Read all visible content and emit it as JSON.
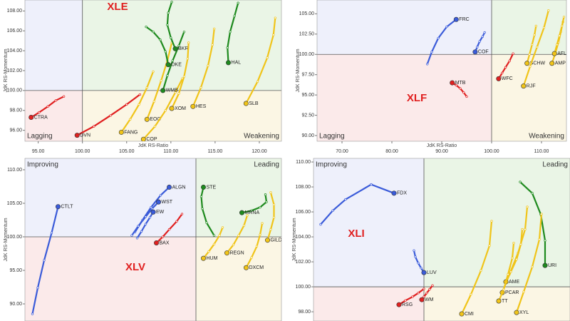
{
  "chart_data": [
    {
      "type": "rrg",
      "title": "XLE",
      "center": 100,
      "x_label": "JdK RS-Ratio",
      "y_label": "JdK RS-Momentum",
      "xlim": [
        93.5,
        122.5
      ],
      "ylim": [
        94.9,
        109.1
      ],
      "xticks": [
        {
          "value": 95,
          "label": "95.00"
        },
        {
          "value": 100,
          "label": "100.00"
        },
        {
          "value": 105,
          "label": "105.00"
        },
        {
          "value": 110,
          "label": "110.00"
        },
        {
          "value": 115,
          "label": "115.00"
        },
        {
          "value": 120,
          "label": "120.00"
        }
      ],
      "yticks": [
        {
          "value": 96,
          "label": "96.00"
        },
        {
          "value": 98,
          "label": "98.00"
        },
        {
          "value": 100,
          "label": "100.00"
        },
        {
          "value": 102,
          "label": "102.00"
        },
        {
          "value": 104,
          "label": "104.00"
        },
        {
          "value": 106,
          "label": "106.00"
        },
        {
          "value": 108,
          "label": "108.00"
        }
      ],
      "quadrant_labels": [
        {
          "text": "Lagging",
          "corner": "bottom-left",
          "color": "#e86a6a"
        },
        {
          "text": "Weakening",
          "corner": "bottom-right",
          "color": "#e0a800"
        }
      ],
      "series": [
        {
          "name": "CTRA",
          "color": "#e02020",
          "x": [
            97.9,
            97.0,
            96.1,
            95.1,
            94.2
          ],
          "y": [
            99.4,
            99.0,
            98.4,
            97.8,
            97.3
          ]
        },
        {
          "name": "DVN",
          "color": "#e02020",
          "x": [
            106.5,
            105.0,
            103.2,
            101.3,
            99.4
          ],
          "y": [
            99.6,
            98.6,
            97.5,
            96.4,
            95.5
          ]
        },
        {
          "name": "EOG",
          "color": "#f0c419",
          "x": [
            110.1,
            109.6,
            108.9,
            108.1,
            107.3
          ],
          "y": [
            104.8,
            103.0,
            101.0,
            98.9,
            97.1
          ]
        },
        {
          "name": "FANG",
          "color": "#f0c419",
          "x": [
            108.0,
            107.3,
            106.4,
            105.4,
            104.4
          ],
          "y": [
            101.9,
            100.3,
            98.6,
            97.1,
            95.8
          ]
        },
        {
          "name": "COP",
          "color": "#f0c419",
          "x": [
            111.3,
            110.5,
            109.4,
            108.2,
            106.9
          ],
          "y": [
            101.2,
            99.8,
            98.0,
            96.4,
            95.1
          ]
        },
        {
          "name": "WMB",
          "color": "#1e8a1e",
          "x": [
            111.5,
            110.9,
            110.2,
            109.6,
            109.1
          ],
          "y": [
            105.9,
            104.5,
            103.0,
            101.5,
            100.0
          ]
        },
        {
          "name": "OKE",
          "color": "#1e8a1e",
          "x": [
            107.2,
            108.0,
            108.8,
            109.4,
            109.7
          ],
          "y": [
            106.4,
            105.9,
            105.1,
            103.9,
            102.6
          ]
        },
        {
          "name": "BKR",
          "color": "#1e8a1e",
          "x": [
            110.1,
            109.7,
            109.6,
            110.0,
            110.5
          ],
          "y": [
            108.9,
            107.8,
            106.6,
            105.3,
            104.2
          ]
        },
        {
          "name": "HAL",
          "color": "#1e8a1e",
          "x": [
            117.6,
            117.2,
            116.7,
            116.4,
            116.5
          ],
          "y": [
            108.8,
            107.5,
            105.9,
            104.3,
            102.8
          ]
        },
        {
          "name": "XOM",
          "color": "#f0c419",
          "x": [
            112.0,
            111.9,
            111.5,
            110.9,
            110.1
          ],
          "y": [
            104.8,
            103.2,
            101.4,
            99.7,
            98.2
          ]
        },
        {
          "name": "HES",
          "color": "#f0c419",
          "x": [
            114.9,
            114.7,
            114.2,
            113.4,
            112.5
          ],
          "y": [
            106.2,
            104.6,
            102.5,
            100.3,
            98.4
          ]
        },
        {
          "name": "SLB",
          "color": "#f0c419",
          "x": [
            121.8,
            121.6,
            120.9,
            119.8,
            118.5
          ],
          "y": [
            107.3,
            105.6,
            103.3,
            100.9,
            98.7
          ]
        }
      ]
    },
    {
      "type": "rrg",
      "title": "XLF",
      "center": 100,
      "x_label": "JdK RS-Ratio",
      "y_label": "JdK RS-Momentum",
      "xlim": [
        65,
        115
      ],
      "ylim": [
        89.3,
        106.7
      ],
      "xticks": [
        {
          "value": 70,
          "label": "70.00"
        },
        {
          "value": 80,
          "label": "80.00"
        },
        {
          "value": 90,
          "label": "90.00"
        },
        {
          "value": 100,
          "label": "100.00"
        },
        {
          "value": 110,
          "label": "110.00"
        }
      ],
      "yticks": [
        {
          "value": 90,
          "label": "90.00"
        },
        {
          "value": 92.5,
          "label": "92.50"
        },
        {
          "value": 95,
          "label": "95.00"
        },
        {
          "value": 97.5,
          "label": "97.50"
        },
        {
          "value": 100,
          "label": "100.00"
        },
        {
          "value": 102.5,
          "label": "102.50"
        },
        {
          "value": 105,
          "label": "105.00"
        }
      ],
      "quadrant_labels": [
        {
          "text": "Lagging",
          "corner": "bottom-left",
          "color": "#e86a6a"
        },
        {
          "text": "Weakening",
          "corner": "bottom-right",
          "color": "#e0a800"
        }
      ],
      "series": [
        {
          "name": "FRC",
          "color": "#3a5bd9",
          "x": [
            87.1,
            88.0,
            89.3,
            91.0,
            92.9
          ],
          "y": [
            98.8,
            100.3,
            102.0,
            103.4,
            104.3
          ]
        },
        {
          "name": "COF",
          "color": "#3a5bd9",
          "x": [
            98.6,
            98.2,
            97.6,
            97.1,
            96.7
          ],
          "y": [
            102.7,
            102.2,
            101.6,
            100.9,
            100.3
          ]
        },
        {
          "name": "MTB",
          "color": "#e02020",
          "x": [
            95.0,
            94.4,
            93.7,
            92.9,
            92.1
          ],
          "y": [
            94.8,
            95.3,
            95.8,
            96.2,
            96.5
          ]
        },
        {
          "name": "WFC",
          "color": "#e02020",
          "x": [
            104.3,
            103.6,
            102.8,
            102.1,
            101.4
          ],
          "y": [
            100.1,
            99.2,
            98.4,
            97.7,
            97.0
          ]
        },
        {
          "name": "SCHW",
          "color": "#f0c419",
          "x": [
            108.9,
            108.6,
            108.1,
            107.6,
            107.1
          ],
          "y": [
            103.5,
            102.4,
            101.2,
            100.0,
            98.9
          ]
        },
        {
          "name": "RJF",
          "color": "#f0c419",
          "x": [
            111.4,
            110.5,
            109.1,
            107.7,
            106.4
          ],
          "y": [
            105.4,
            103.3,
            100.9,
            98.5,
            96.1
          ]
        },
        {
          "name": "AMP",
          "color": "#f0c419",
          "x": [
            114.3,
            113.9,
            113.4,
            112.8,
            112.1
          ],
          "y": [
            104.0,
            102.8,
            101.5,
            100.2,
            98.9
          ]
        },
        {
          "name": "AFL",
          "color": "#f0c419",
          "x": [
            114.5,
            114.1,
            113.6,
            113.1,
            112.6
          ],
          "y": [
            104.6,
            103.5,
            102.3,
            101.2,
            100.1
          ]
        }
      ]
    },
    {
      "type": "rrg",
      "title": "XLV",
      "center": 100,
      "y_label": "JdK RS-Momentum",
      "xlim": [
        84,
        108
      ],
      "ylim": [
        87.45,
        111.7
      ],
      "yticks": [
        {
          "value": 90,
          "label": "90.00"
        },
        {
          "value": 95,
          "label": "95.00"
        },
        {
          "value": 100,
          "label": "100.00"
        },
        {
          "value": 105,
          "label": "105.00"
        },
        {
          "value": 110,
          "label": "110.00"
        }
      ],
      "quadrant_labels": [
        {
          "text": "Improving",
          "corner": "top-left",
          "color": "#4a63d0"
        },
        {
          "text": "Leading",
          "corner": "top-right",
          "color": "#2f9a2f"
        }
      ],
      "series": [
        {
          "name": "CTLT",
          "color": "#3a5bd9",
          "x": [
            84.7,
            85.2,
            85.8,
            86.5,
            87.1
          ],
          "y": [
            88.5,
            92.4,
            96.5,
            100.6,
            104.5
          ]
        },
        {
          "name": "ALGN",
          "color": "#3a5bd9",
          "x": [
            94.3,
            95.0,
            95.8,
            96.7,
            97.5
          ],
          "y": [
            100.7,
            102.5,
            104.4,
            106.2,
            107.4
          ]
        },
        {
          "name": "WST",
          "color": "#3a5bd9",
          "x": [
            94.0,
            94.6,
            95.3,
            95.9,
            96.5
          ],
          "y": [
            100.2,
            101.6,
            103.0,
            104.2,
            105.2
          ]
        },
        {
          "name": "EW",
          "color": "#3a5bd9",
          "x": [
            94.5,
            94.9,
            95.3,
            95.7,
            96.0
          ],
          "y": [
            99.8,
            100.8,
            101.9,
            102.9,
            103.7
          ]
        },
        {
          "name": "BAX",
          "color": "#e02020",
          "x": [
            98.7,
            98.2,
            97.5,
            96.9,
            96.3
          ],
          "y": [
            103.4,
            102.3,
            101.1,
            100.0,
            99.1
          ]
        },
        {
          "name": "STE",
          "color": "#1e8a1e",
          "x": [
            101.7,
            101.0,
            100.6,
            100.5,
            100.7
          ],
          "y": [
            100.2,
            102.1,
            104.2,
            106.0,
            107.4
          ]
        },
        {
          "name": "MRNA",
          "color": "#1e8a1e",
          "x": [
            106.5,
            106.6,
            106.0,
            105.2,
            104.3
          ],
          "y": [
            106.3,
            105.2,
            104.4,
            103.9,
            103.6
          ]
        },
        {
          "name": "HUM",
          "color": "#f0c419",
          "x": [
            102.5,
            102.2,
            101.7,
            101.2,
            100.7
          ],
          "y": [
            101.4,
            100.2,
            98.9,
            97.8,
            96.8
          ]
        },
        {
          "name": "REGN",
          "color": "#f0c419",
          "x": [
            104.8,
            104.5,
            104.0,
            103.5,
            102.9
          ],
          "y": [
            103.2,
            101.7,
            100.2,
            98.8,
            97.6
          ]
        },
        {
          "name": "DXCM",
          "color": "#f0c419",
          "x": [
            106.2,
            106.0,
            105.7,
            105.2,
            104.7
          ],
          "y": [
            102.0,
            100.3,
            98.6,
            96.9,
            95.4
          ]
        },
        {
          "name": "GILD",
          "color": "#f0c419",
          "x": [
            107.0,
            107.3,
            107.3,
            107.0,
            106.7
          ],
          "y": [
            106.6,
            104.8,
            102.9,
            101.1,
            99.5
          ]
        }
      ]
    },
    {
      "type": "rrg",
      "title": "XLI",
      "center": 100,
      "y_label": "JdK RS-Momentum",
      "xlim": [
        92.25,
        110.25
      ],
      "ylim": [
        97.26,
        110.29
      ],
      "yticks": [
        {
          "value": 98,
          "label": "98.00"
        },
        {
          "value": 100,
          "label": "100.00"
        },
        {
          "value": 102,
          "label": "102.00"
        },
        {
          "value": 104,
          "label": "104.00"
        },
        {
          "value": 106,
          "label": "106.00"
        },
        {
          "value": 108,
          "label": "108.00"
        },
        {
          "value": 110,
          "label": "110.00"
        }
      ],
      "quadrant_labels": [
        {
          "text": "Improving",
          "corner": "top-left",
          "color": "#4a63d0"
        },
        {
          "text": "Leading",
          "corner": "top-right",
          "color": "#2f9a2f"
        }
      ],
      "series": [
        {
          "name": "FDX",
          "color": "#3a5bd9",
          "x": [
            92.75,
            93.6,
            94.5,
            96.3,
            97.9
          ],
          "y": [
            105.0,
            106.1,
            107.0,
            108.2,
            107.5
          ]
        },
        {
          "name": "LUV",
          "color": "#3a5bd9",
          "x": [
            99.3,
            99.4,
            99.6,
            99.8,
            100.0
          ],
          "y": [
            102.9,
            102.4,
            101.9,
            101.5,
            101.14
          ]
        },
        {
          "name": "RSG",
          "color": "#e02020",
          "x": [
            100.0,
            99.6,
            99.2,
            98.7,
            98.25
          ],
          "y": [
            99.83,
            99.5,
            99.2,
            98.9,
            98.57
          ]
        },
        {
          "name": "WM",
          "color": "#e02020",
          "x": [
            100.6,
            100.4,
            100.2,
            100.0,
            99.85
          ],
          "y": [
            100.1,
            99.8,
            99.5,
            99.2,
            98.97
          ]
        },
        {
          "name": "URI",
          "color": "#1e8a1e",
          "x": [
            106.75,
            107.6,
            108.2,
            108.5,
            108.5
          ],
          "y": [
            108.4,
            107.5,
            105.8,
            103.7,
            101.71
          ]
        },
        {
          "name": "CMI",
          "color": "#f0c419",
          "x": [
            104.75,
            104.6,
            104.0,
            103.3,
            102.65
          ],
          "y": [
            105.26,
            103.3,
            101.3,
            99.4,
            97.83
          ]
        },
        {
          "name": "PCAR",
          "color": "#f0c419",
          "x": [
            107.25,
            107.1,
            106.6,
            106.0,
            105.5
          ],
          "y": [
            106.4,
            104.6,
            102.7,
            101.0,
            99.54
          ]
        },
        {
          "name": "AME",
          "color": "#f0c419",
          "x": [
            106.9,
            106.8,
            106.5,
            106.1,
            105.75
          ],
          "y": [
            104.6,
            103.4,
            102.2,
            101.2,
            100.4
          ]
        },
        {
          "name": "TT",
          "color": "#f0c419",
          "x": [
            106.3,
            106.2,
            105.9,
            105.6,
            105.25
          ],
          "y": [
            103.5,
            102.3,
            101.0,
            99.8,
            98.86
          ]
        },
        {
          "name": "XYL",
          "color": "#f0c419",
          "x": [
            108.25,
            108.1,
            107.6,
            107.0,
            106.5
          ],
          "y": [
            105.83,
            103.8,
            101.6,
            99.6,
            97.94
          ]
        }
      ]
    }
  ]
}
